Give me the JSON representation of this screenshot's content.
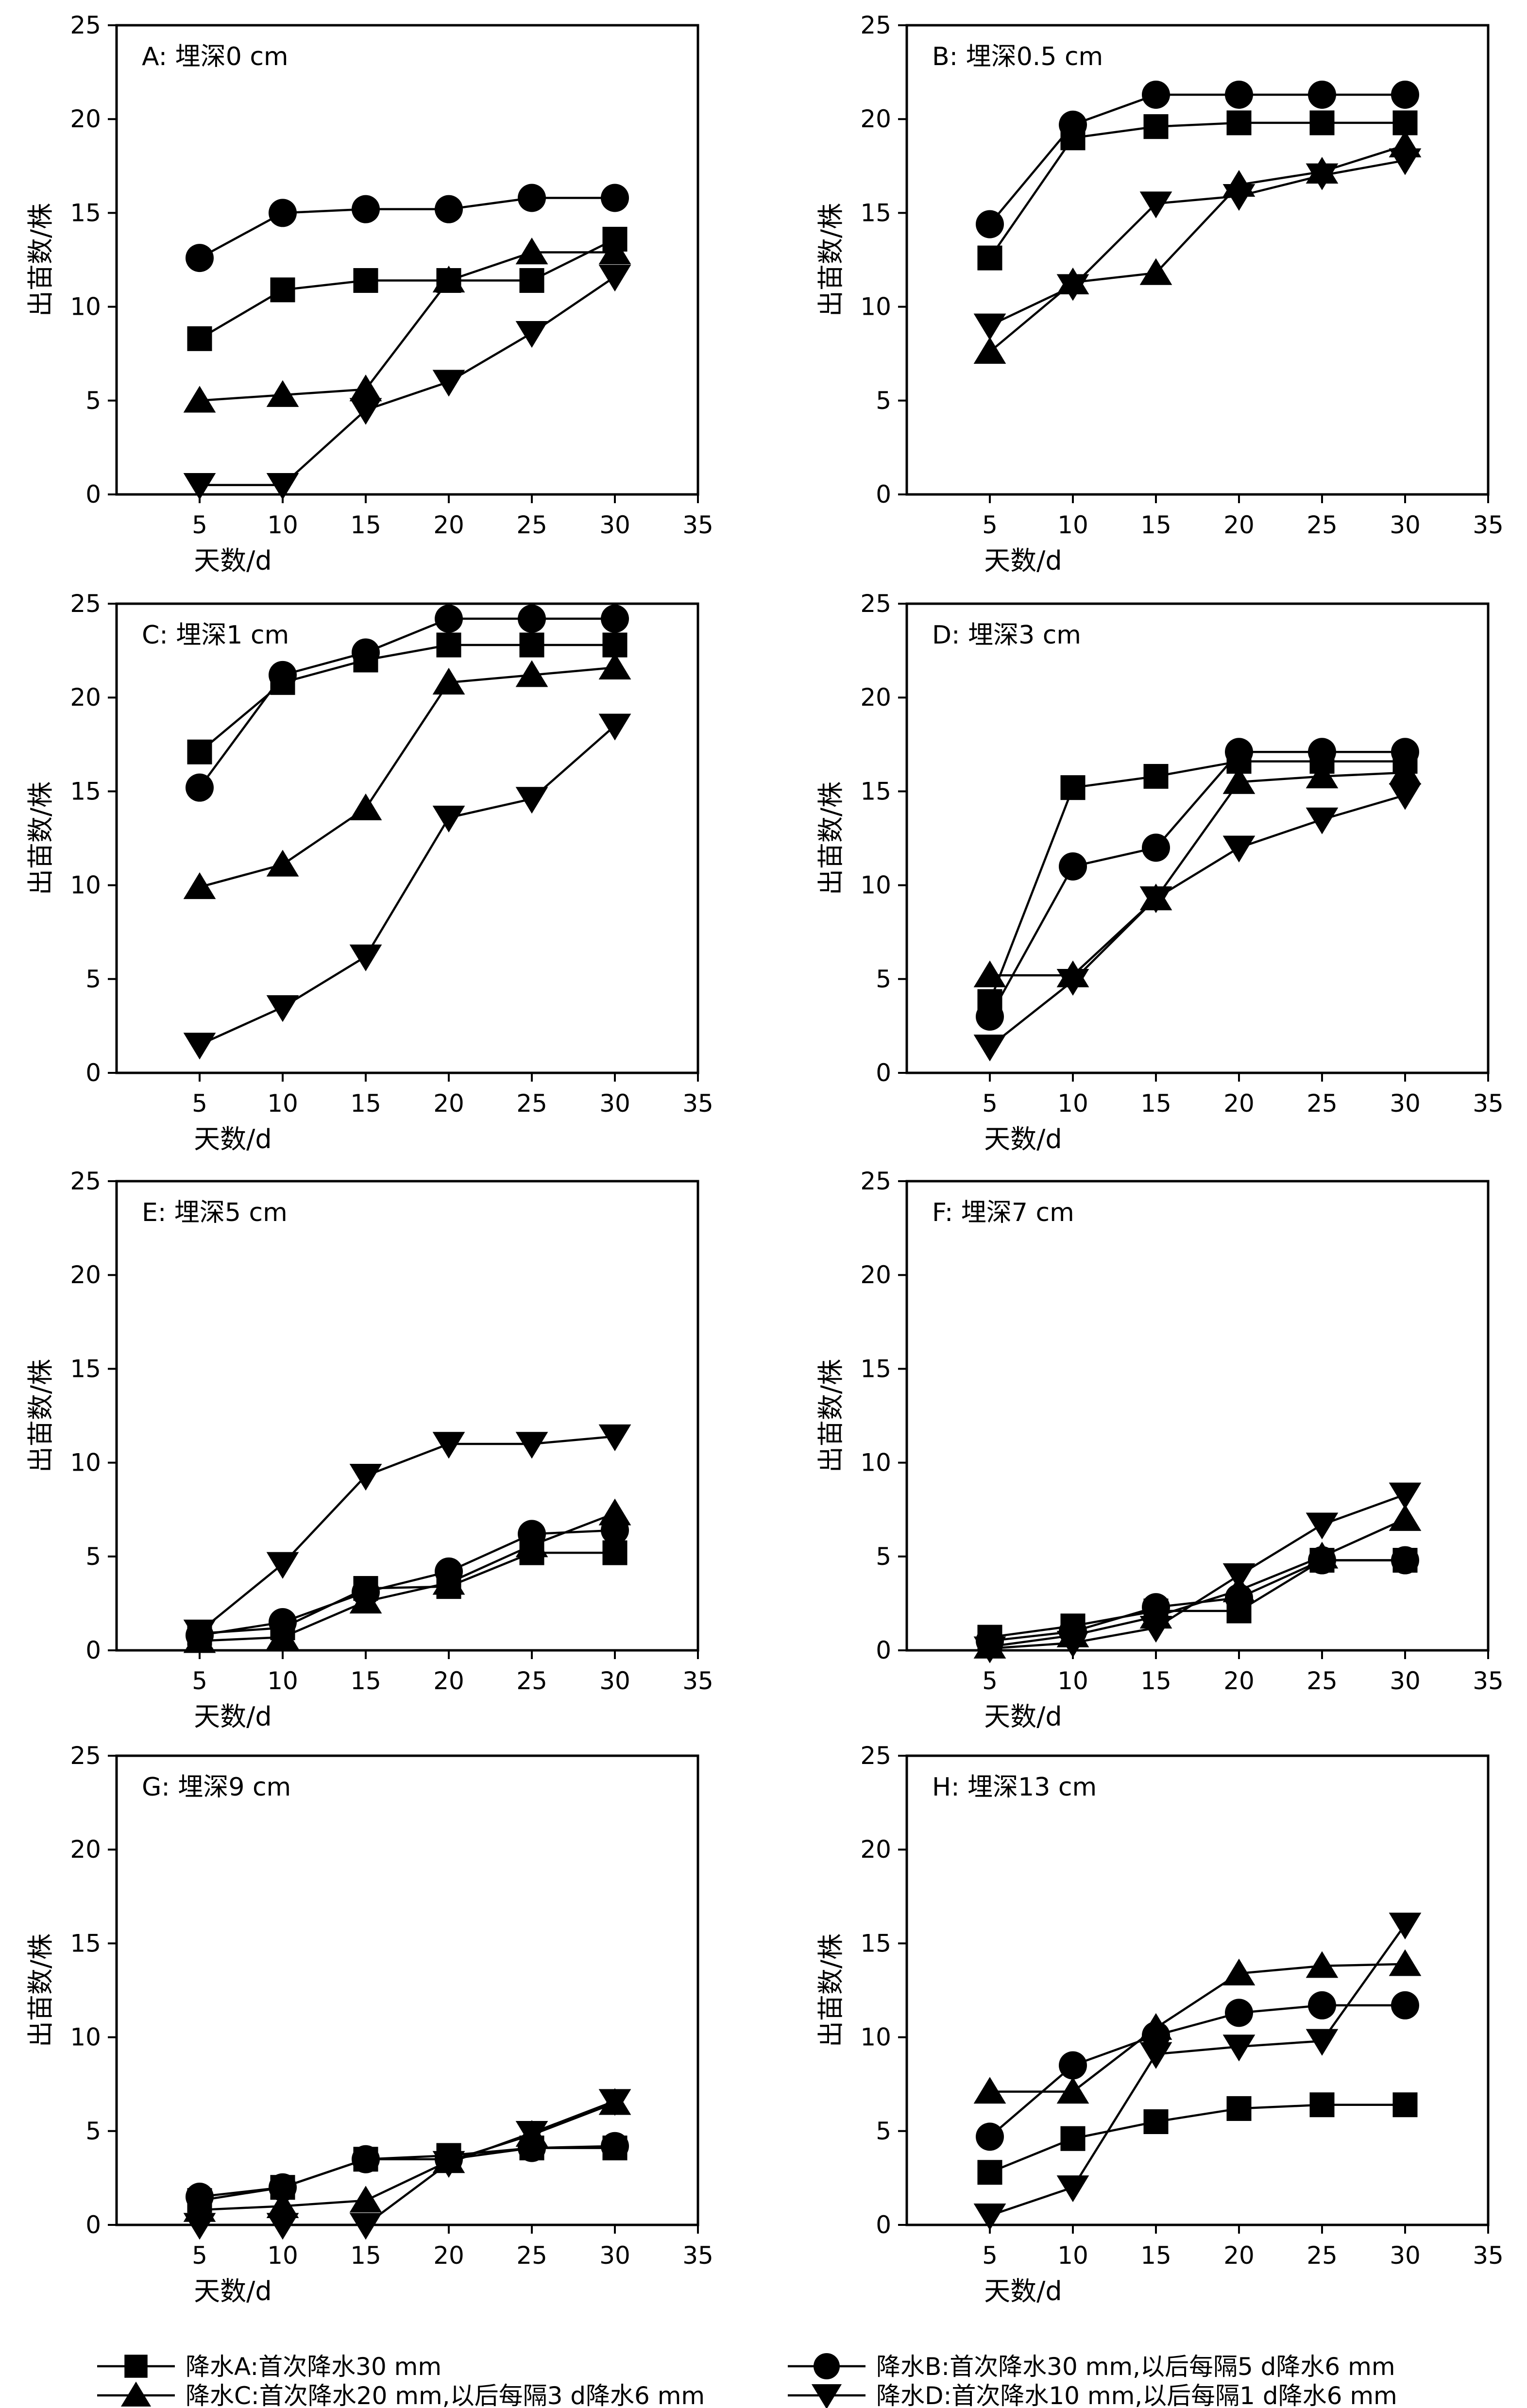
{
  "figure": {
    "legend": [
      {
        "key": "A",
        "marker": "square",
        "label": "降水A:首次降水30 mm"
      },
      {
        "key": "B",
        "marker": "circle",
        "label": "降水B:首次降水30 mm,以后每隔5 d降水6 mm"
      },
      {
        "key": "C",
        "marker": "triangle-up",
        "label": "降水C:首次降水20 mm,以后每隔3 d降水6 mm"
      },
      {
        "key": "D",
        "marker": "triangle-down",
        "label": "降水D:首次降水10 mm,以后每隔1 d降水6 mm"
      }
    ],
    "colors": {
      "line": "#000000",
      "marker": "#000000",
      "background": "#ffffff"
    }
  },
  "chart_data": [
    {
      "panel": "A",
      "type": "line",
      "title": "A: 埋深0 cm",
      "xlabel": "天数/d",
      "ylabel": "出苗数/株",
      "xlim": [
        0,
        35
      ],
      "ylim": [
        0,
        25
      ],
      "xticks": [
        5,
        10,
        15,
        20,
        25,
        30,
        35
      ],
      "yticks": [
        0,
        5,
        10,
        15,
        20,
        25
      ],
      "x": [
        5,
        10,
        15,
        20,
        25,
        30
      ],
      "series": [
        {
          "key": "A",
          "values": [
            8.3,
            10.9,
            11.4,
            11.4,
            11.4,
            13.6
          ]
        },
        {
          "key": "B",
          "values": [
            12.6,
            15.0,
            15.2,
            15.2,
            15.8,
            15.8
          ]
        },
        {
          "key": "C",
          "values": [
            5.0,
            5.3,
            5.6,
            11.4,
            12.9,
            12.9
          ]
        },
        {
          "key": "D",
          "values": [
            0.5,
            0.5,
            4.5,
            6.0,
            8.6,
            11.6
          ]
        }
      ]
    },
    {
      "panel": "B",
      "type": "line",
      "title": "B: 埋深0.5 cm",
      "xlabel": "天数/d",
      "ylabel": "出苗数/株",
      "xlim": [
        0,
        35
      ],
      "ylim": [
        0,
        25
      ],
      "xticks": [
        5,
        10,
        15,
        20,
        25,
        30,
        35
      ],
      "yticks": [
        0,
        5,
        10,
        15,
        20,
        25
      ],
      "x": [
        5,
        10,
        15,
        20,
        25,
        30
      ],
      "series": [
        {
          "key": "A",
          "values": [
            12.6,
            19.0,
            19.6,
            19.8,
            19.8,
            19.8
          ]
        },
        {
          "key": "B",
          "values": [
            14.4,
            19.7,
            21.3,
            21.3,
            21.3,
            21.3
          ]
        },
        {
          "key": "C",
          "values": [
            7.6,
            11.3,
            11.8,
            16.5,
            17.2,
            18.6
          ]
        },
        {
          "key": "D",
          "values": [
            9.0,
            11.1,
            15.5,
            15.9,
            17.0,
            17.8
          ]
        }
      ]
    },
    {
      "panel": "C",
      "type": "line",
      "title": "C: 埋深1 cm",
      "xlabel": "天数/d",
      "ylabel": "出苗数/株",
      "xlim": [
        0,
        35
      ],
      "ylim": [
        0,
        25
      ],
      "xticks": [
        5,
        10,
        15,
        20,
        25,
        30,
        35
      ],
      "yticks": [
        0,
        5,
        10,
        15,
        20,
        25
      ],
      "x": [
        5,
        10,
        15,
        20,
        25,
        30
      ],
      "series": [
        {
          "key": "A",
          "values": [
            17.1,
            20.8,
            22.0,
            22.8,
            22.8,
            22.8
          ]
        },
        {
          "key": "B",
          "values": [
            15.2,
            21.2,
            22.4,
            24.2,
            24.2,
            24.2
          ]
        },
        {
          "key": "C",
          "values": [
            9.9,
            11.1,
            14.1,
            20.8,
            21.2,
            21.6
          ]
        },
        {
          "key": "D",
          "values": [
            1.5,
            3.5,
            6.2,
            13.6,
            14.6,
            18.5
          ]
        }
      ]
    },
    {
      "panel": "D",
      "type": "line",
      "title": "D: 埋深3 cm",
      "xlabel": "天数/d",
      "ylabel": "出苗数/株",
      "xlim": [
        0,
        35
      ],
      "ylim": [
        0,
        25
      ],
      "xticks": [
        5,
        10,
        15,
        20,
        25,
        30,
        35
      ],
      "yticks": [
        0,
        5,
        10,
        15,
        20,
        25
      ],
      "x": [
        5,
        10,
        15,
        20,
        25,
        30
      ],
      "series": [
        {
          "key": "A",
          "values": [
            3.8,
            15.2,
            15.8,
            16.6,
            16.6,
            16.6
          ]
        },
        {
          "key": "B",
          "values": [
            3.0,
            11.0,
            12.0,
            17.1,
            17.1,
            17.1
          ]
        },
        {
          "key": "C",
          "values": [
            5.2,
            5.2,
            9.3,
            15.5,
            15.8,
            16.0
          ]
        },
        {
          "key": "D",
          "values": [
            1.4,
            4.9,
            9.3,
            12.0,
            13.5,
            14.8
          ]
        }
      ]
    },
    {
      "panel": "E",
      "type": "line",
      "title": "E: 埋深5 cm",
      "xlabel": "天数/d",
      "ylabel": "出苗数/株",
      "xlim": [
        0,
        35
      ],
      "ylim": [
        0,
        25
      ],
      "xticks": [
        5,
        10,
        15,
        20,
        25,
        30,
        35
      ],
      "yticks": [
        0,
        5,
        10,
        15,
        20,
        25
      ],
      "x": [
        5,
        10,
        15,
        20,
        25,
        30
      ],
      "series": [
        {
          "key": "A",
          "values": [
            0.9,
            1.2,
            3.3,
            3.4,
            5.2,
            5.2
          ]
        },
        {
          "key": "B",
          "values": [
            0.8,
            1.5,
            3.1,
            4.2,
            6.2,
            6.4
          ]
        },
        {
          "key": "C",
          "values": [
            0.5,
            0.7,
            2.6,
            3.6,
            5.6,
            7.3
          ]
        },
        {
          "key": "D",
          "values": [
            1.0,
            4.6,
            9.3,
            11.0,
            11.0,
            11.4
          ]
        }
      ]
    },
    {
      "panel": "F",
      "type": "line",
      "title": "F: 埋深7 cm",
      "xlabel": "天数/d",
      "ylabel": "出苗数/株",
      "xlim": [
        0,
        35
      ],
      "ylim": [
        0,
        25
      ],
      "xticks": [
        5,
        10,
        15,
        20,
        25,
        30,
        35
      ],
      "yticks": [
        0,
        5,
        10,
        15,
        20,
        25
      ],
      "x": [
        5,
        10,
        15,
        20,
        25,
        30
      ],
      "series": [
        {
          "key": "A",
          "values": [
            0.7,
            1.3,
            2.1,
            2.1,
            4.8,
            4.8
          ]
        },
        {
          "key": "B",
          "values": [
            0.5,
            1.0,
            2.3,
            2.8,
            4.8,
            4.8
          ]
        },
        {
          "key": "C",
          "values": [
            0.2,
            0.8,
            1.8,
            3.2,
            5.0,
            7.0
          ]
        },
        {
          "key": "D",
          "values": [
            0.1,
            0.4,
            1.2,
            4.0,
            6.7,
            8.3
          ]
        }
      ]
    },
    {
      "panel": "G",
      "type": "line",
      "title": "G: 埋深9 cm",
      "xlabel": "天数/d",
      "ylabel": "出苗数/株",
      "xlim": [
        0,
        35
      ],
      "ylim": [
        0,
        25
      ],
      "xticks": [
        5,
        10,
        15,
        20,
        25,
        30,
        35
      ],
      "yticks": [
        0,
        5,
        10,
        15,
        20,
        25
      ],
      "x": [
        5,
        10,
        15,
        20,
        25,
        30
      ],
      "series": [
        {
          "key": "A",
          "values": [
            1.3,
            2.0,
            3.5,
            3.7,
            4.1,
            4.1
          ]
        },
        {
          "key": "B",
          "values": [
            1.5,
            2.0,
            3.5,
            3.5,
            4.1,
            4.2
          ]
        },
        {
          "key": "C",
          "values": [
            0.8,
            1.0,
            1.3,
            3.4,
            4.8,
            6.5
          ]
        },
        {
          "key": "D",
          "values": [
            0.0,
            0.0,
            0.0,
            3.3,
            4.9,
            6.6
          ]
        }
      ]
    },
    {
      "panel": "H",
      "type": "line",
      "title": "H: 埋深13 cm",
      "xlabel": "天数/d",
      "ylabel": "出苗数/株",
      "xlim": [
        0,
        35
      ],
      "ylim": [
        0,
        25
      ],
      "xticks": [
        5,
        10,
        15,
        20,
        25,
        30,
        35
      ],
      "yticks": [
        0,
        5,
        10,
        15,
        20,
        25
      ],
      "x": [
        5,
        10,
        15,
        20,
        25,
        30
      ],
      "series": [
        {
          "key": "A",
          "values": [
            2.8,
            4.6,
            5.5,
            6.2,
            6.4,
            6.4
          ]
        },
        {
          "key": "B",
          "values": [
            4.7,
            8.5,
            10.1,
            11.3,
            11.7,
            11.7
          ]
        },
        {
          "key": "C",
          "values": [
            7.1,
            7.1,
            10.5,
            13.4,
            13.8,
            13.9
          ]
        },
        {
          "key": "D",
          "values": [
            0.5,
            2.0,
            9.1,
            9.5,
            9.8,
            16.0
          ]
        }
      ]
    }
  ]
}
